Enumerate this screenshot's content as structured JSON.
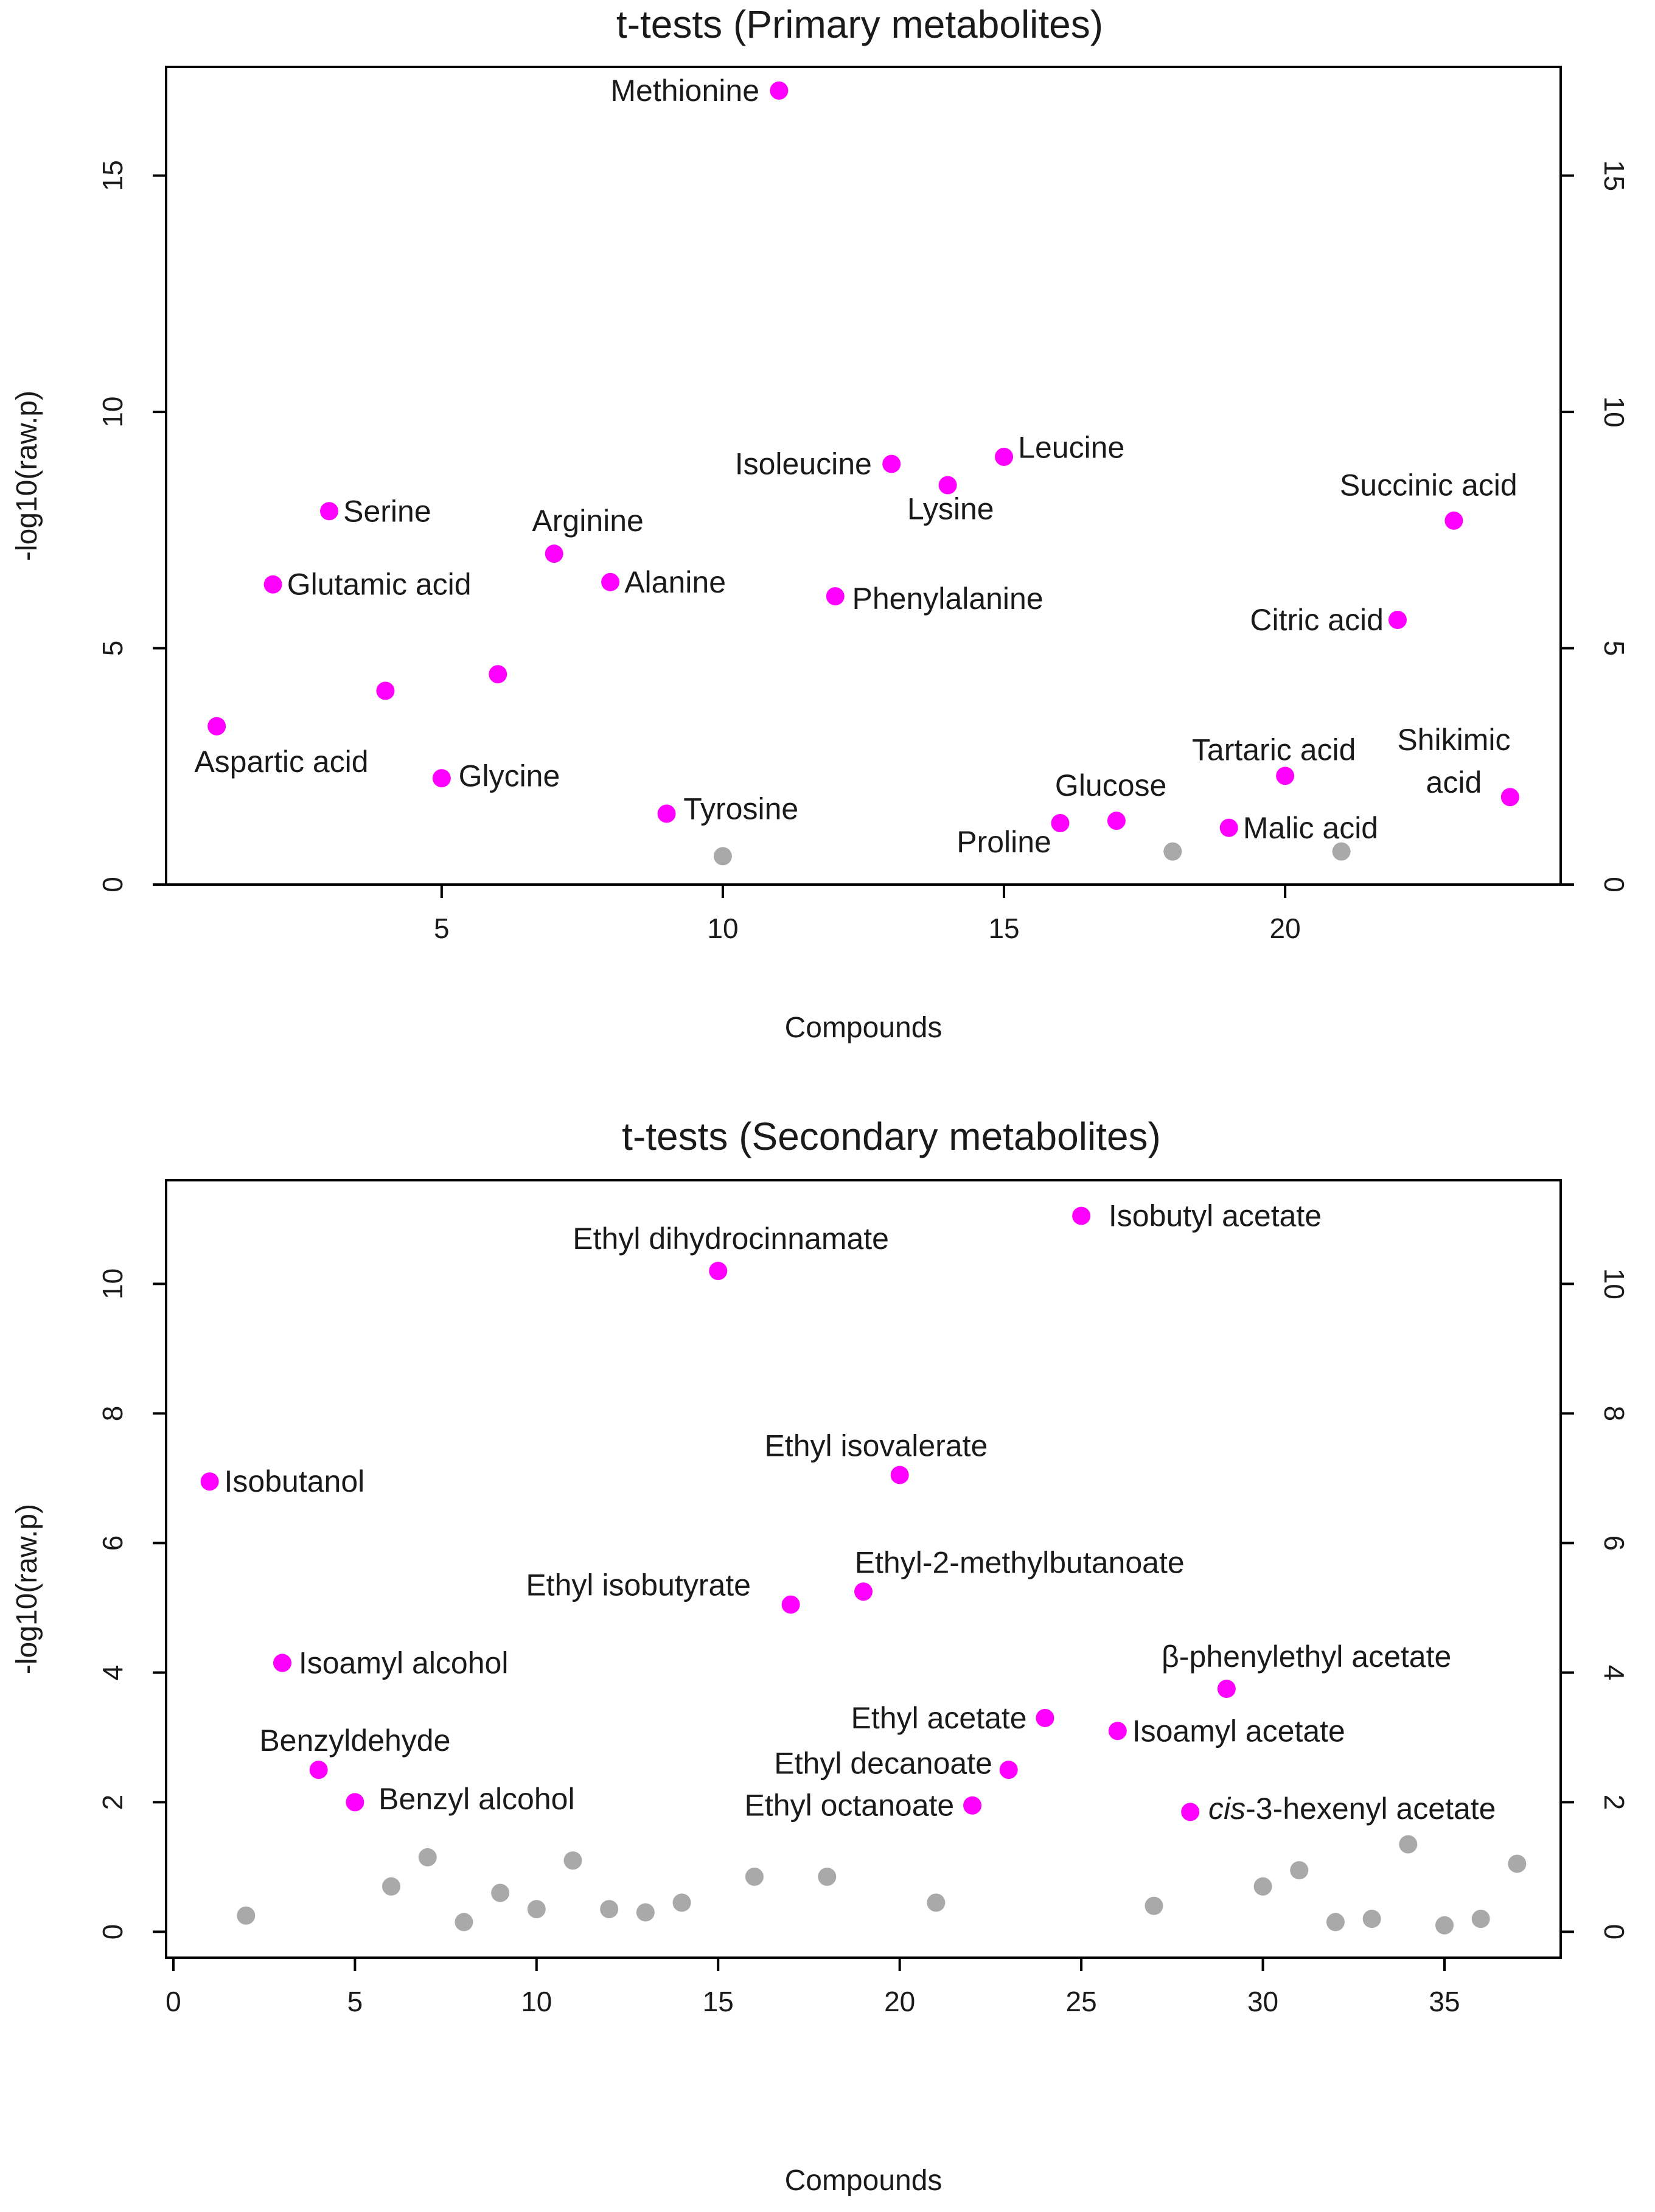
{
  "colors": {
    "significant": "#ff00ff",
    "nonsignificant": "#a9a9a9",
    "axis": "#000000"
  },
  "chart_data": [
    {
      "type": "scatter",
      "title": "t-tests (Primary metabolites)",
      "xlabel": "Compounds",
      "ylabel": "-log10(raw.p)",
      "xlim": [
        0.1,
        24.9
      ],
      "ylim": [
        0,
        17.3
      ],
      "xticks": [
        5,
        10,
        15,
        20
      ],
      "yticks": [
        0,
        5,
        10,
        15
      ],
      "right_axis": true,
      "points": [
        {
          "x": 1,
          "y": 3.35,
          "sig": true,
          "label": "Aspartic acid",
          "anchor": "middle",
          "dx": 1.15,
          "dy": -0.75
        },
        {
          "x": 2,
          "y": 6.35,
          "sig": true,
          "label": "Glutamic acid",
          "anchor": "start",
          "dx": 0.25,
          "dy": 0
        },
        {
          "x": 3,
          "y": 7.9,
          "sig": true,
          "label": "Serine",
          "anchor": "start",
          "dx": 0.25,
          "dy": 0
        },
        {
          "x": 4,
          "y": 4.1,
          "sig": true,
          "label": "",
          "anchor": "start",
          "dx": 0,
          "dy": 0
        },
        {
          "x": 5,
          "y": 2.25,
          "sig": true,
          "label": "Glycine",
          "anchor": "start",
          "dx": 0.3,
          "dy": 0.05
        },
        {
          "x": 6,
          "y": 4.45,
          "sig": true,
          "label": "",
          "anchor": "start",
          "dx": 0,
          "dy": 0
        },
        {
          "x": 7,
          "y": 7.0,
          "sig": true,
          "label": "Arginine",
          "anchor": "middle",
          "dx": 0.6,
          "dy": 0.7
        },
        {
          "x": 8,
          "y": 6.4,
          "sig": true,
          "label": "Alanine",
          "anchor": "start",
          "dx": 0.25,
          "dy": 0
        },
        {
          "x": 9,
          "y": 1.5,
          "sig": true,
          "label": "Tyrosine",
          "anchor": "start",
          "dx": 0.3,
          "dy": 0.1
        },
        {
          "x": 10,
          "y": 0.6,
          "sig": false,
          "label": "",
          "anchor": "start",
          "dx": 0,
          "dy": 0
        },
        {
          "x": 11,
          "y": 16.8,
          "sig": true,
          "label": "Methionine",
          "anchor": "end",
          "dx": -0.35,
          "dy": 0
        },
        {
          "x": 12,
          "y": 6.1,
          "sig": true,
          "label": "Phenylalanine",
          "anchor": "start",
          "dx": 0.3,
          "dy": -0.05
        },
        {
          "x": 13,
          "y": 8.9,
          "sig": true,
          "label": "Isoleucine",
          "anchor": "end",
          "dx": -0.35,
          "dy": 0
        },
        {
          "x": 14,
          "y": 8.45,
          "sig": true,
          "label": "Lysine",
          "anchor": "middle",
          "dx": 0.05,
          "dy": -0.5
        },
        {
          "x": 15,
          "y": 9.05,
          "sig": true,
          "label": "Leucine",
          "anchor": "start",
          "dx": 0.25,
          "dy": 0.2
        },
        {
          "x": 16,
          "y": 1.3,
          "sig": true,
          "label": "Proline",
          "anchor": "middle",
          "dx": -1.0,
          "dy": -0.4
        },
        {
          "x": 17,
          "y": 1.35,
          "sig": true,
          "label": "Glucose",
          "anchor": "middle",
          "dx": -0.1,
          "dy": 0.75
        },
        {
          "x": 18,
          "y": 0.7,
          "sig": false,
          "label": "",
          "anchor": "start",
          "dx": 0,
          "dy": 0
        },
        {
          "x": 19,
          "y": 1.2,
          "sig": true,
          "label": "Malic acid",
          "anchor": "start",
          "dx": 0.25,
          "dy": 0
        },
        {
          "x": 20,
          "y": 2.3,
          "sig": true,
          "label": "Tartaric acid",
          "anchor": "middle",
          "dx": -0.2,
          "dy": 0.55
        },
        {
          "x": 21,
          "y": 0.7,
          "sig": false,
          "label": "",
          "anchor": "start",
          "dx": 0,
          "dy": 0
        },
        {
          "x": 22,
          "y": 5.6,
          "sig": true,
          "label": "Citric acid",
          "anchor": "end",
          "dx": -0.25,
          "dy": 0
        },
        {
          "x": 23,
          "y": 7.7,
          "sig": true,
          "label": "Succinic acid",
          "anchor": "middle",
          "dx": -0.45,
          "dy": 0.75
        },
        {
          "x": 24,
          "y": 1.85,
          "sig": true,
          "label": "Shikimic acid",
          "anchor": "middle",
          "dx": -1.0,
          "dy": 0.85
        }
      ]
    },
    {
      "type": "scatter",
      "title": "t-tests (Secondary metabolites)",
      "xlabel": "Compounds",
      "ylabel": "-log10(raw.p)",
      "xlim": [
        -0.2,
        38.2
      ],
      "ylim": [
        -0.4,
        11.6
      ],
      "xticks": [
        0,
        5,
        10,
        15,
        20,
        25,
        30,
        35
      ],
      "yticks": [
        0,
        2,
        4,
        6,
        8,
        10
      ],
      "right_axis": true,
      "points": [
        {
          "x": 1,
          "y": 6.95,
          "sig": true,
          "label": "Isobutanol",
          "anchor": "start",
          "dx": 0.4,
          "dy": 0
        },
        {
          "x": 2,
          "y": 0.25,
          "sig": false,
          "label": "",
          "anchor": "start",
          "dx": 0,
          "dy": 0
        },
        {
          "x": 3,
          "y": 4.15,
          "sig": true,
          "label": "Isoamyl alcohol",
          "anchor": "start",
          "dx": 0.45,
          "dy": 0
        },
        {
          "x": 4,
          "y": 2.5,
          "sig": true,
          "label": "Benzyldehyde",
          "anchor": "middle",
          "dx": 1.0,
          "dy": 0.45
        },
        {
          "x": 5,
          "y": 2.0,
          "sig": true,
          "label": "Benzyl alcohol",
          "anchor": "start",
          "dx": 0.65,
          "dy": 0.05
        },
        {
          "x": 6,
          "y": 0.7,
          "sig": false,
          "label": "",
          "anchor": "start",
          "dx": 0,
          "dy": 0
        },
        {
          "x": 7,
          "y": 1.15,
          "sig": false,
          "label": "",
          "anchor": "start",
          "dx": 0,
          "dy": 0
        },
        {
          "x": 8,
          "y": 0.15,
          "sig": false,
          "label": "",
          "anchor": "start",
          "dx": 0,
          "dy": 0
        },
        {
          "x": 9,
          "y": 0.6,
          "sig": false,
          "label": "",
          "anchor": "start",
          "dx": 0,
          "dy": 0
        },
        {
          "x": 10,
          "y": 0.35,
          "sig": false,
          "label": "",
          "anchor": "start",
          "dx": 0,
          "dy": 0
        },
        {
          "x": 11,
          "y": 1.1,
          "sig": false,
          "label": "",
          "anchor": "start",
          "dx": 0,
          "dy": 0
        },
        {
          "x": 12,
          "y": 0.35,
          "sig": false,
          "label": "",
          "anchor": "start",
          "dx": 0,
          "dy": 0
        },
        {
          "x": 13,
          "y": 0.3,
          "sig": false,
          "label": "",
          "anchor": "start",
          "dx": 0,
          "dy": 0
        },
        {
          "x": 14,
          "y": 0.45,
          "sig": false,
          "label": "",
          "anchor": "start",
          "dx": 0,
          "dy": 0
        },
        {
          "x": 15,
          "y": 10.2,
          "sig": true,
          "label": "Ethyl dihydrocinnamate",
          "anchor": "middle",
          "dx": 0.35,
          "dy": 0.5
        },
        {
          "x": 16,
          "y": 0.85,
          "sig": false,
          "label": "",
          "anchor": "start",
          "dx": 0,
          "dy": 0
        },
        {
          "x": 17,
          "y": 5.05,
          "sig": true,
          "label": "Ethyl isobutyrate",
          "anchor": "end",
          "dx": -1.1,
          "dy": 0.3
        },
        {
          "x": 18,
          "y": 0.85,
          "sig": false,
          "label": "",
          "anchor": "start",
          "dx": 0,
          "dy": 0
        },
        {
          "x": 19,
          "y": 5.25,
          "sig": true,
          "label": "Ethyl-2-methylbutanoate",
          "anchor": "middle",
          "dx": 4.3,
          "dy": 0.45
        },
        {
          "x": 20,
          "y": 7.05,
          "sig": true,
          "label": "Ethyl isovalerate",
          "anchor": "middle",
          "dx": -0.65,
          "dy": 0.45
        },
        {
          "x": 21,
          "y": 0.45,
          "sig": false,
          "label": "",
          "anchor": "start",
          "dx": 0,
          "dy": 0
        },
        {
          "x": 22,
          "y": 1.95,
          "sig": true,
          "label": "Ethyl octanoate",
          "anchor": "end",
          "dx": -0.5,
          "dy": 0
        },
        {
          "x": 23,
          "y": 2.5,
          "sig": true,
          "label": "Ethyl decanoate",
          "anchor": "end",
          "dx": -0.45,
          "dy": 0.1
        },
        {
          "x": 24,
          "y": 3.3,
          "sig": true,
          "label": "Ethyl acetate",
          "anchor": "end",
          "dx": -0.5,
          "dy": 0
        },
        {
          "x": 25,
          "y": 11.05,
          "sig": true,
          "label": "Isobutyl acetate",
          "anchor": "start",
          "dx": 0.75,
          "dy": 0
        },
        {
          "x": 26,
          "y": 3.1,
          "sig": true,
          "label": "Isoamyl acetate",
          "anchor": "start",
          "dx": 0.4,
          "dy": 0
        },
        {
          "x": 27,
          "y": 0.4,
          "sig": false,
          "label": "",
          "anchor": "start",
          "dx": 0,
          "dy": 0
        },
        {
          "x": 28,
          "y": 1.85,
          "sig": true,
          "label": "cis-3-hexenyl acetate",
          "anchor": "start",
          "dx": 0.5,
          "dy": 0.05,
          "italic_prefix": "cis"
        },
        {
          "x": 29,
          "y": 3.75,
          "sig": true,
          "label": "β-phenylethyl acetate",
          "anchor": "middle",
          "dx": 2.2,
          "dy": 0.5
        },
        {
          "x": 30,
          "y": 0.7,
          "sig": false,
          "label": "",
          "anchor": "start",
          "dx": 0,
          "dy": 0
        },
        {
          "x": 31,
          "y": 0.95,
          "sig": false,
          "label": "",
          "anchor": "start",
          "dx": 0,
          "dy": 0
        },
        {
          "x": 32,
          "y": 0.15,
          "sig": false,
          "label": "",
          "anchor": "start",
          "dx": 0,
          "dy": 0
        },
        {
          "x": 33,
          "y": 0.2,
          "sig": false,
          "label": "",
          "anchor": "start",
          "dx": 0,
          "dy": 0
        },
        {
          "x": 34,
          "y": 1.35,
          "sig": false,
          "label": "",
          "anchor": "start",
          "dx": 0,
          "dy": 0
        },
        {
          "x": 35,
          "y": 0.1,
          "sig": false,
          "label": "",
          "anchor": "start",
          "dx": 0,
          "dy": 0
        },
        {
          "x": 36,
          "y": 0.2,
          "sig": false,
          "label": "",
          "anchor": "start",
          "dx": 0,
          "dy": 0
        },
        {
          "x": 37,
          "y": 1.05,
          "sig": false,
          "label": "",
          "anchor": "start",
          "dx": 0,
          "dy": 0
        }
      ]
    }
  ]
}
